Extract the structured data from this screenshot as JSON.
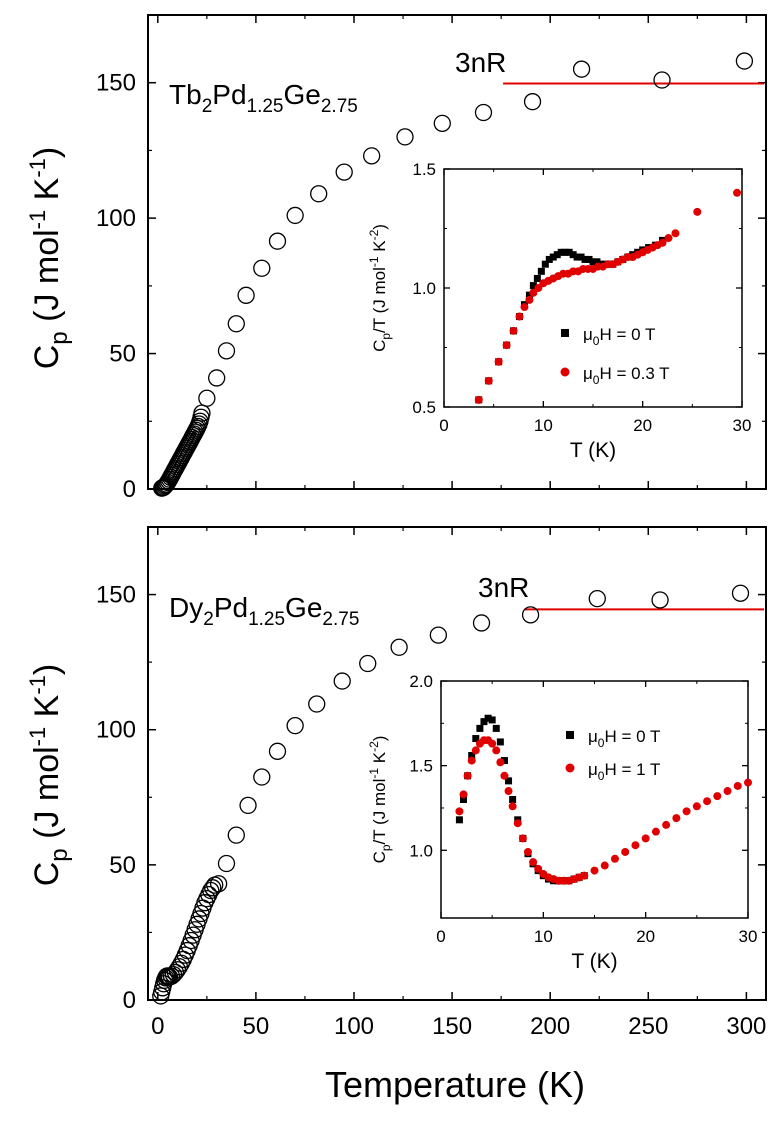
{
  "figure": {
    "xlabel": "Temperature (K)",
    "ylabel_main": "C",
    "ylabel_main_sub": "p",
    "ylabel_main_unit_a": " (J mol",
    "ylabel_main_sup1": "-1",
    "ylabel_main_unit_b": " K",
    "ylabel_main_sup2": "-1",
    "ylabel_main_close": ")"
  },
  "chart_data": [
    {
      "type": "scatter",
      "compound": {
        "base1": "Tb",
        "sub1": "2",
        "base2": "Pd",
        "sub2": "1.25",
        "base3": "Ge",
        "sub3": "2.75"
      },
      "annotation": "3nR",
      "reference_line": {
        "value": 149.7,
        "x_range": [
          176,
          310
        ],
        "color": "#e00000"
      },
      "xlim": [
        -5,
        310
      ],
      "ylim": [
        0,
        175
      ],
      "xticks": [
        0,
        50,
        100,
        150,
        200,
        250,
        300
      ],
      "yticks": [
        0,
        50,
        100,
        150
      ],
      "series": [
        {
          "marker": "open-circle",
          "x": [
            2,
            2.5,
            3,
            3.5,
            4,
            4.5,
            5,
            5.5,
            6,
            6.5,
            7,
            7.5,
            8,
            8.5,
            9,
            9.5,
            10,
            10.5,
            11,
            11.5,
            12,
            12.5,
            13,
            13.5,
            14,
            14.5,
            15,
            15.5,
            16,
            16.5,
            17,
            17.5,
            18,
            18.5,
            19,
            19.5,
            20,
            20.5,
            21,
            21.5,
            22,
            22.5,
            25,
            30,
            35,
            40,
            45,
            53,
            61,
            70,
            82,
            95,
            109,
            126,
            145,
            166,
            191,
            216,
            257,
            299
          ],
          "y": [
            0.3,
            0.4,
            0.6,
            1.0,
            1.4,
            1.8,
            2.4,
            3.0,
            3.6,
            4.3,
            5.0,
            5.6,
            6.3,
            7.0,
            7.6,
            8.3,
            9.0,
            9.6,
            10.3,
            11.0,
            11.6,
            12.3,
            13.0,
            13.6,
            14.3,
            15.0,
            15.6,
            16.3,
            17.0,
            17.6,
            18.3,
            19.0,
            19.7,
            20.3,
            21.0,
            21.7,
            22.4,
            23.1,
            24.0,
            25.0,
            26.5,
            28.0,
            33.5,
            41,
            51,
            61,
            71.5,
            81.5,
            91.5,
            101,
            109,
            117,
            123,
            130,
            135,
            139,
            143,
            155,
            151,
            158
          ]
        }
      ],
      "inset": {
        "type": "scatter",
        "xlabel": "T (K)",
        "ylabel_a": "C",
        "ylabel_sub": "p",
        "ylabel_b": "/T (J mol",
        "ylabel_sup1": "-1",
        "ylabel_c": " K",
        "ylabel_sup2": "-2",
        "ylabel_close": ")",
        "xlim": [
          0,
          30
        ],
        "ylim": [
          0.5,
          1.5
        ],
        "xticks": [
          0,
          10,
          20,
          30
        ],
        "yticks": [
          0.5,
          1.0,
          1.5
        ],
        "ytick_labels": [
          "0.5",
          "1.0",
          "1.5"
        ],
        "legend": [
          {
            "prefix": "μ",
            "sub": "0",
            "suffix": "H = 0 T"
          },
          {
            "prefix": "μ",
            "sub": "0",
            "suffix": "H = 0.3 T"
          }
        ],
        "series": [
          {
            "marker": "square",
            "color": "#000000",
            "x": [
              3.5,
              4.5,
              5.5,
              6.3,
              7.0,
              7.6,
              8.1,
              8.6,
              9.0,
              9.4,
              9.8,
              10.2,
              10.6,
              11.0,
              11.4,
              11.8,
              12.2,
              12.6,
              13.0,
              13.4,
              13.8,
              14.2,
              14.6,
              15.0,
              15.4,
              15.8,
              16.2,
              16.6,
              17.0,
              17.5,
              18.0,
              18.5,
              19.0,
              19.5,
              20.0,
              20.6,
              21.3,
              22.0
            ],
            "y": [
              0.53,
              0.61,
              0.69,
              0.76,
              0.82,
              0.88,
              0.93,
              0.97,
              1.01,
              1.04,
              1.07,
              1.1,
              1.12,
              1.13,
              1.14,
              1.15,
              1.15,
              1.15,
              1.14,
              1.13,
              1.13,
              1.12,
              1.12,
              1.11,
              1.11,
              1.1,
              1.1,
              1.1,
              1.1,
              1.11,
              1.12,
              1.13,
              1.14,
              1.15,
              1.16,
              1.17,
              1.18,
              1.2
            ]
          },
          {
            "marker": "circle",
            "color": "#e00000",
            "x": [
              3.5,
              4.5,
              5.5,
              6.3,
              7.0,
              7.6,
              8.1,
              8.6,
              9.0,
              9.5,
              10.0,
              10.5,
              11.0,
              11.5,
              12.0,
              12.5,
              13.0,
              13.5,
              14.0,
              14.5,
              15.0,
              15.5,
              16.0,
              16.5,
              17.0,
              17.5,
              18.0,
              18.5,
              19.0,
              19.5,
              20.0,
              20.5,
              21.0,
              21.5,
              22.0,
              22.6,
              23.3,
              25.5,
              29.5
            ],
            "y": [
              0.53,
              0.61,
              0.69,
              0.76,
              0.82,
              0.88,
              0.92,
              0.95,
              0.98,
              1.0,
              1.02,
              1.03,
              1.04,
              1.05,
              1.06,
              1.06,
              1.07,
              1.07,
              1.08,
              1.08,
              1.08,
              1.09,
              1.09,
              1.1,
              1.1,
              1.11,
              1.12,
              1.13,
              1.13,
              1.14,
              1.15,
              1.16,
              1.17,
              1.18,
              1.19,
              1.21,
              1.23,
              1.32,
              1.4
            ]
          }
        ]
      }
    },
    {
      "type": "scatter",
      "compound": {
        "base1": "Dy",
        "sub1": "2",
        "base2": "Pd",
        "sub2": "1.25",
        "base3": "Ge",
        "sub3": "2.75"
      },
      "annotation": "3nR",
      "reference_line": {
        "value": 144.5,
        "x_range": [
          187,
          310
        ],
        "color": "#e00000"
      },
      "xlim": [
        -5,
        310
      ],
      "ylim": [
        0,
        175
      ],
      "xticks": [
        0,
        50,
        100,
        150,
        200,
        250,
        300
      ],
      "yticks": [
        0,
        50,
        100,
        150
      ],
      "series": [
        {
          "marker": "open-circle",
          "x": [
            1.5,
            2,
            2.5,
            3,
            3.5,
            4,
            4.5,
            5,
            5.5,
            6,
            7,
            8,
            9,
            10,
            11,
            12,
            13,
            14,
            15,
            16,
            17,
            18,
            19,
            20,
            21,
            22,
            23,
            24,
            25,
            26,
            27,
            28,
            29,
            31,
            35,
            40,
            46,
            53,
            61,
            70,
            81,
            94,
            107,
            123,
            143,
            165,
            190,
            224,
            256,
            297
          ],
          "y": [
            1.5,
            3,
            4.5,
            6,
            7.3,
            8.2,
            8.8,
            8.9,
            8.8,
            8.5,
            8.8,
            9.4,
            10.2,
            11.2,
            12.3,
            13.6,
            15.0,
            16.6,
            18.3,
            20.1,
            22.0,
            24.0,
            26.0,
            28.0,
            30.0,
            32.0,
            34.0,
            36.0,
            37.5,
            39.0,
            40.5,
            41.5,
            42.5,
            43,
            50.5,
            61,
            72,
            82.5,
            92,
            101.5,
            109.5,
            118,
            124.5,
            130.5,
            135,
            139.5,
            142.5,
            148.5,
            148,
            150.5
          ]
        }
      ],
      "inset": {
        "type": "scatter",
        "xlabel": "T (K)",
        "ylabel_a": "C",
        "ylabel_sub": "p",
        "ylabel_b": "/T (J mol",
        "ylabel_sup1": "-1",
        "ylabel_c": " K",
        "ylabel_sup2": "-2",
        "ylabel_close": ")",
        "xlim": [
          0,
          30
        ],
        "ylim": [
          0.6,
          2.0
        ],
        "xticks": [
          0,
          10,
          20,
          30
        ],
        "yticks": [
          1.0,
          1.5,
          2.0
        ],
        "ytick_labels": [
          "1.0",
          "1.5",
          "2.0"
        ],
        "legend": [
          {
            "prefix": "μ",
            "sub": "0",
            "suffix": "H =  0 T"
          },
          {
            "prefix": "μ",
            "sub": "0",
            "suffix": "H =  1 T"
          }
        ],
        "series": [
          {
            "marker": "square",
            "color": "#000000",
            "x": [
              1.8,
              2.2,
              2.6,
              3.0,
              3.4,
              3.8,
              4.2,
              4.6,
              5.0,
              5.4,
              5.8,
              6.2,
              6.6,
              7.0,
              7.5,
              8.0,
              8.5,
              9.0,
              9.5,
              10.0,
              10.5,
              11.0,
              11.5,
              12.0,
              12.5,
              13.0,
              13.5,
              14.0
            ],
            "y": [
              1.18,
              1.3,
              1.44,
              1.56,
              1.66,
              1.72,
              1.76,
              1.78,
              1.77,
              1.72,
              1.64,
              1.53,
              1.41,
              1.3,
              1.18,
              1.07,
              0.98,
              0.92,
              0.88,
              0.85,
              0.83,
              0.82,
              0.82,
              0.82,
              0.82,
              0.83,
              0.84,
              0.85
            ]
          },
          {
            "marker": "circle",
            "color": "#e00000",
            "x": [
              1.8,
              2.2,
              2.6,
              3.0,
              3.4,
              3.8,
              4.2,
              4.6,
              5.0,
              5.4,
              5.8,
              6.2,
              6.6,
              7.0,
              7.5,
              8.0,
              8.5,
              9.0,
              9.5,
              10.0,
              10.5,
              11.0,
              11.5,
              12.0,
              12.5,
              13.0,
              13.5,
              14.0,
              15.0,
              16.0,
              17.0,
              18.0,
              19.0,
              20.0,
              21.0,
              22.0,
              23.0,
              24.0,
              25.0,
              26.0,
              27.0,
              28.0,
              29.0,
              30.0
            ],
            "y": [
              1.23,
              1.33,
              1.44,
              1.53,
              1.59,
              1.63,
              1.65,
              1.65,
              1.63,
              1.59,
              1.52,
              1.44,
              1.35,
              1.26,
              1.16,
              1.07,
              0.99,
              0.93,
              0.89,
              0.86,
              0.84,
              0.83,
              0.82,
              0.82,
              0.82,
              0.83,
              0.84,
              0.85,
              0.88,
              0.91,
              0.95,
              0.99,
              1.03,
              1.07,
              1.11,
              1.15,
              1.19,
              1.23,
              1.26,
              1.29,
              1.32,
              1.35,
              1.38,
              1.4
            ]
          }
        ]
      }
    }
  ]
}
